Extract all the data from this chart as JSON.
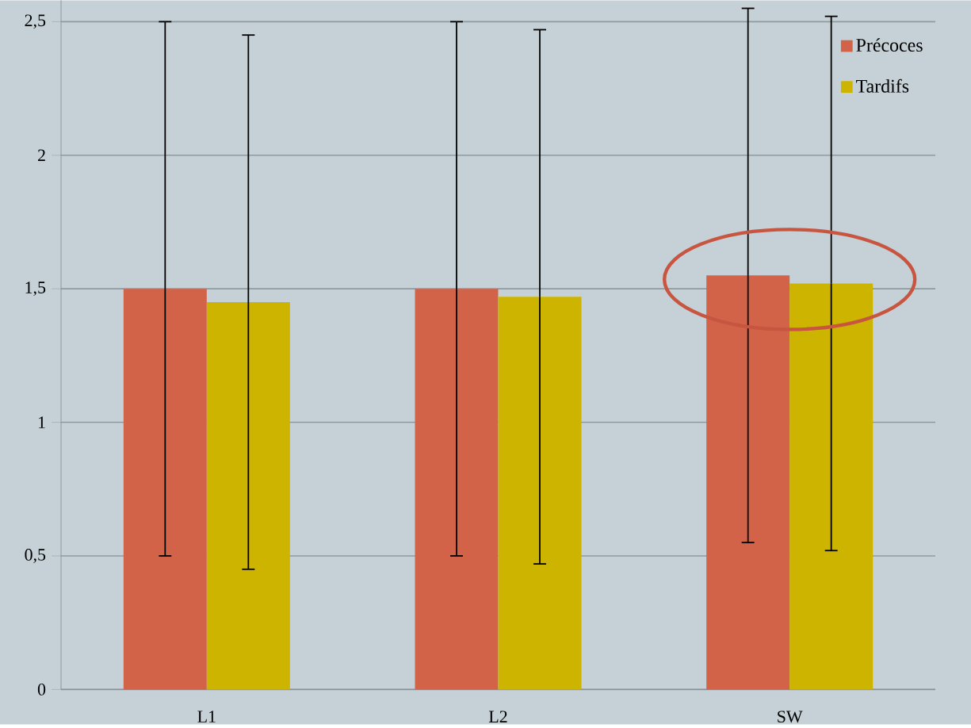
{
  "chart_data": {
    "type": "bar",
    "categories": [
      "L1",
      "L2",
      "SW"
    ],
    "series": [
      {
        "name": "Précoces",
        "color": "#d26349",
        "values": [
          1.5,
          1.5,
          1.55
        ],
        "errors": [
          1,
          1,
          1
        ]
      },
      {
        "name": "Tardifs",
        "color": "#cdb400",
        "values": [
          1.45,
          1.47,
          1.52
        ],
        "errors": [
          1,
          1,
          1
        ]
      }
    ],
    "ylim": [
      0,
      2.58
    ],
    "yticks": [
      0,
      {
        "value": 0.5,
        "label": "0,5"
      },
      1,
      {
        "value": 1.5,
        "label": "1,5"
      },
      2,
      {
        "value": 2.5,
        "label": "2,5"
      }
    ],
    "grid": "y",
    "legend": "top right"
  }
}
